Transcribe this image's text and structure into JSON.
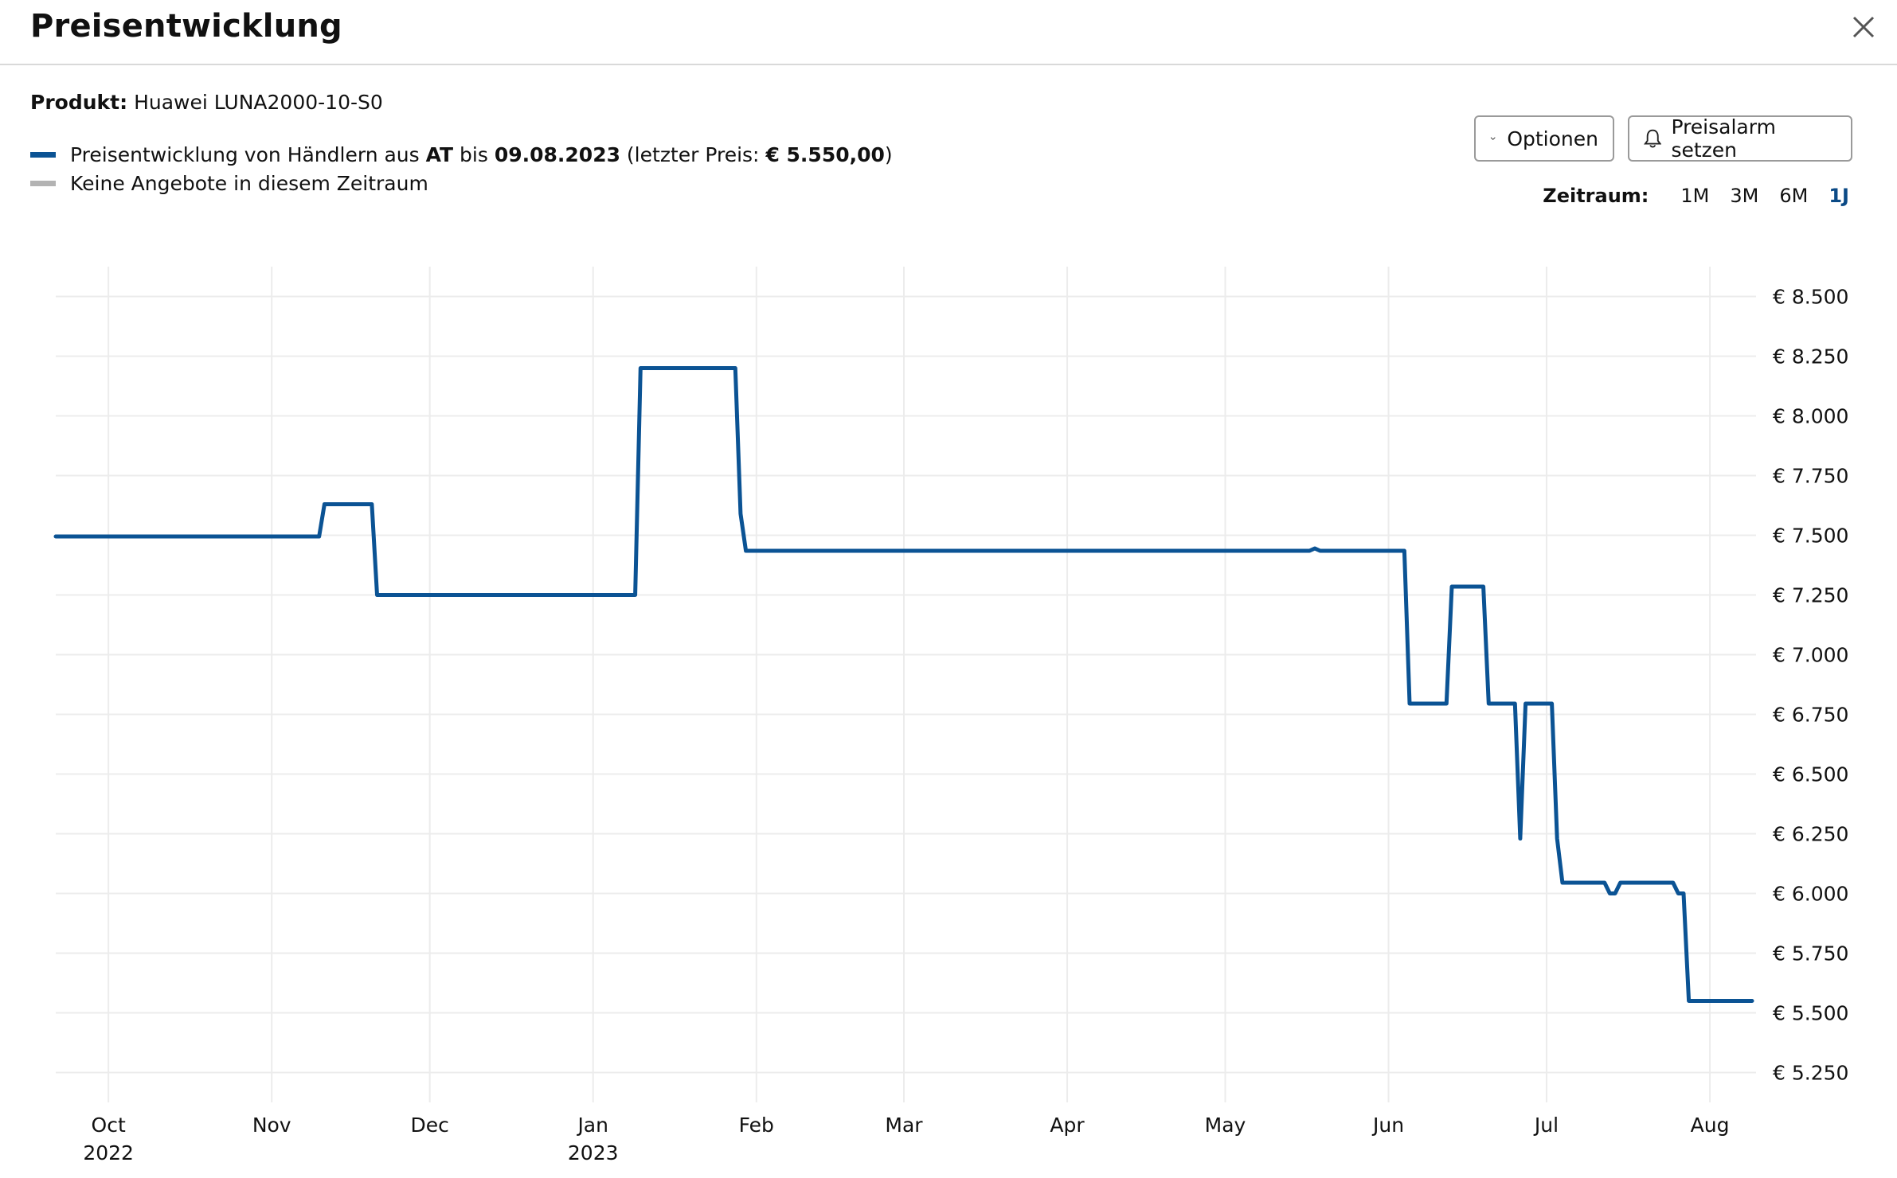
{
  "header": {
    "title": "Preisentwicklung"
  },
  "product": {
    "label": "Produkt:",
    "name": "Huawei LUNA2000-10-S0"
  },
  "legend": {
    "primary": {
      "color": "#0b5394",
      "text_prefix": "Preisentwicklung von Händlern aus ",
      "country": "AT",
      "text_mid": " bis ",
      "date": "09.08.2023",
      "text_price_prefix": " (letzter Preis: ",
      "price": "€ 5.550,00",
      "text_suffix": ")"
    },
    "secondary": {
      "color": "#b3b3b3",
      "text": "Keine Angebote in diesem Zeitraum"
    }
  },
  "buttons": {
    "options_label": "Optionen",
    "alarm_label": "Preisalarm setzen"
  },
  "zeitraum": {
    "label": "Zeitraum:",
    "options": [
      "1M",
      "3M",
      "6M",
      "1J"
    ],
    "active": "1J"
  },
  "chart_data": {
    "type": "line",
    "title": "",
    "xlabel": "",
    "ylabel": "",
    "grid": true,
    "x_range": [
      "2022-09-21",
      "2023-08-09"
    ],
    "ylim": [
      5125,
      8625
    ],
    "y_ticks": [
      5250,
      5500,
      5750,
      6000,
      6250,
      6500,
      6750,
      7000,
      7250,
      7500,
      7750,
      8000,
      8250,
      8500
    ],
    "y_tick_labels": [
      "€ 5.250",
      "€ 5.500",
      "€ 5.750",
      "€ 6.000",
      "€ 6.250",
      "€ 6.500",
      "€ 6.750",
      "€ 7.000",
      "€ 7.250",
      "€ 7.500",
      "€ 7.750",
      "€ 8.000",
      "€ 8.250",
      "€ 8.500"
    ],
    "x_ticks": [
      {
        "date": "2022-10-01",
        "label": "Oct",
        "year": "2022"
      },
      {
        "date": "2022-11-01",
        "label": "Nov",
        "year": ""
      },
      {
        "date": "2022-12-01",
        "label": "Dec",
        "year": ""
      },
      {
        "date": "2023-01-01",
        "label": "Jan",
        "year": "2023"
      },
      {
        "date": "2023-02-01",
        "label": "Feb",
        "year": ""
      },
      {
        "date": "2023-03-01",
        "label": "Mar",
        "year": ""
      },
      {
        "date": "2023-04-01",
        "label": "Apr",
        "year": ""
      },
      {
        "date": "2023-05-01",
        "label": "May",
        "year": ""
      },
      {
        "date": "2023-06-01",
        "label": "Jun",
        "year": ""
      },
      {
        "date": "2023-07-01",
        "label": "Jul",
        "year": ""
      },
      {
        "date": "2023-08-01",
        "label": "Aug",
        "year": ""
      }
    ],
    "series": [
      {
        "color": "#0b5394",
        "points": [
          [
            "2022-09-21",
            7495
          ],
          [
            "2022-11-10",
            7495
          ],
          [
            "2022-11-11",
            7630
          ],
          [
            "2022-11-20",
            7630
          ],
          [
            "2022-11-21",
            7250
          ],
          [
            "2023-01-09",
            7250
          ],
          [
            "2023-01-10",
            8200
          ],
          [
            "2023-01-28",
            8200
          ],
          [
            "2023-01-29",
            7590
          ],
          [
            "2023-01-30",
            7435
          ],
          [
            "2023-05-17",
            7435
          ],
          [
            "2023-05-18",
            7445
          ],
          [
            "2023-05-19",
            7435
          ],
          [
            "2023-06-04",
            7435
          ],
          [
            "2023-06-05",
            6795
          ],
          [
            "2023-06-12",
            6795
          ],
          [
            "2023-06-13",
            7285
          ],
          [
            "2023-06-19",
            7285
          ],
          [
            "2023-06-20",
            6795
          ],
          [
            "2023-06-25",
            6795
          ],
          [
            "2023-06-26",
            6230
          ],
          [
            "2023-06-27",
            6795
          ],
          [
            "2023-07-02",
            6795
          ],
          [
            "2023-07-03",
            6230
          ],
          [
            "2023-07-04",
            6045
          ],
          [
            "2023-07-12",
            6045
          ],
          [
            "2023-07-13",
            6000
          ],
          [
            "2023-07-14",
            6000
          ],
          [
            "2023-07-15",
            6045
          ],
          [
            "2023-07-25",
            6045
          ],
          [
            "2023-07-26",
            6000
          ],
          [
            "2023-07-27",
            6000
          ],
          [
            "2023-07-28",
            5550
          ],
          [
            "2023-08-09",
            5550
          ]
        ]
      }
    ]
  }
}
